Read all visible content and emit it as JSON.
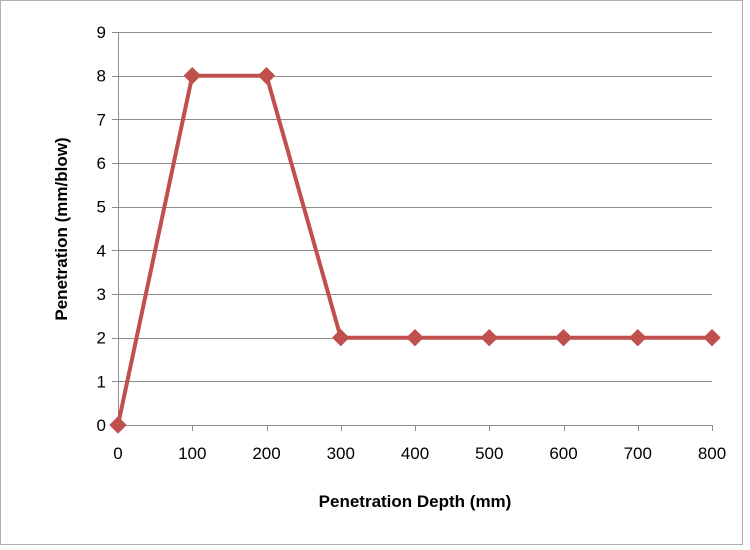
{
  "chart_data": {
    "type": "line",
    "title": "",
    "xlabel": "Penetration Depth (mm)",
    "ylabel": "Penetration  (mm/blow)",
    "xlim": [
      0,
      800
    ],
    "ylim": [
      0,
      9
    ],
    "xticks": [
      "0",
      "100",
      "200",
      "300",
      "400",
      "500",
      "600",
      "700",
      "800"
    ],
    "yticks": [
      "0",
      "1",
      "2",
      "3",
      "4",
      "5",
      "6",
      "7",
      "8",
      "9"
    ],
    "grid": "horizontal",
    "legend": "none",
    "series": [
      {
        "x": [
          0,
          100,
          200,
          300,
          400,
          500,
          600,
          700,
          800
        ],
        "y": [
          0,
          8,
          8,
          2,
          2,
          2,
          2,
          2,
          2
        ],
        "color": "#C0504D",
        "marker": "diamond"
      }
    ]
  }
}
